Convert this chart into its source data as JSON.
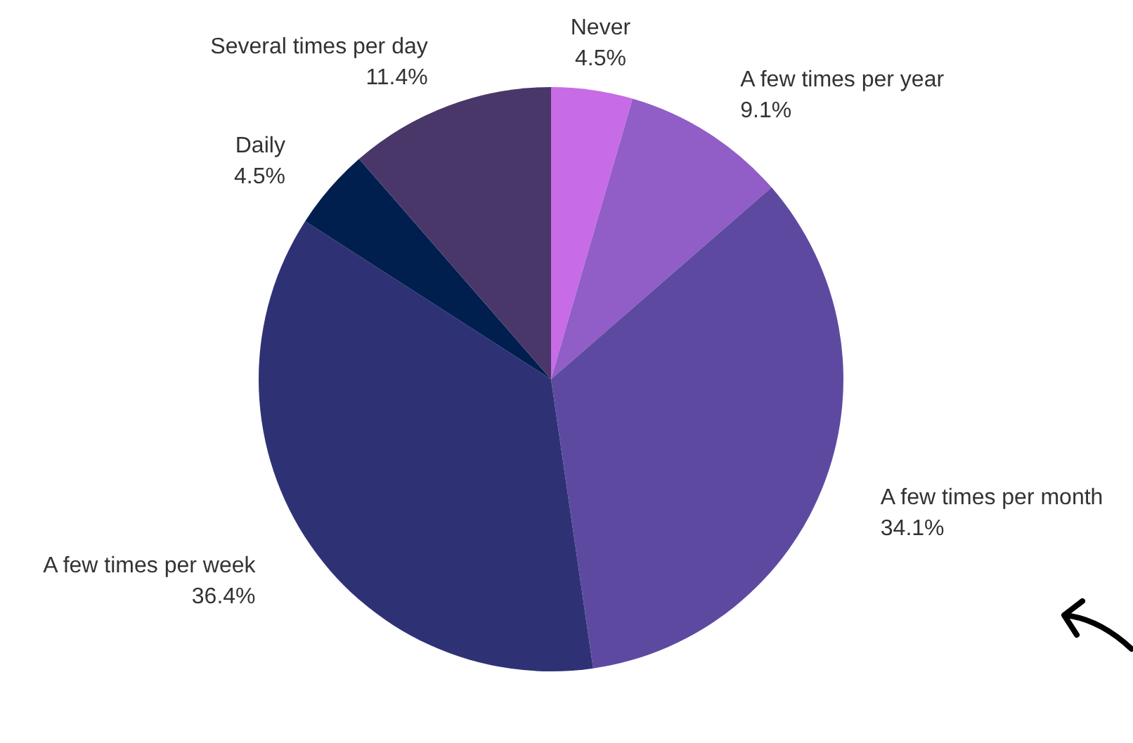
{
  "chart_data": {
    "type": "pie",
    "categories": [
      "Never",
      "A few times per year",
      "A few times per month",
      "A few times per week",
      "Daily",
      "Several times per day"
    ],
    "values": [
      4.5,
      9.1,
      34.1,
      36.4,
      4.5,
      11.4
    ],
    "colors": [
      "#c86be6",
      "#915dc6",
      "#5d4aa0",
      "#2e3275",
      "#001f4f",
      "#4a3769"
    ],
    "value_labels": [
      "4.5%",
      "9.1%",
      "34.1%",
      "36.4%",
      "4.5%",
      "11.4%"
    ]
  }
}
